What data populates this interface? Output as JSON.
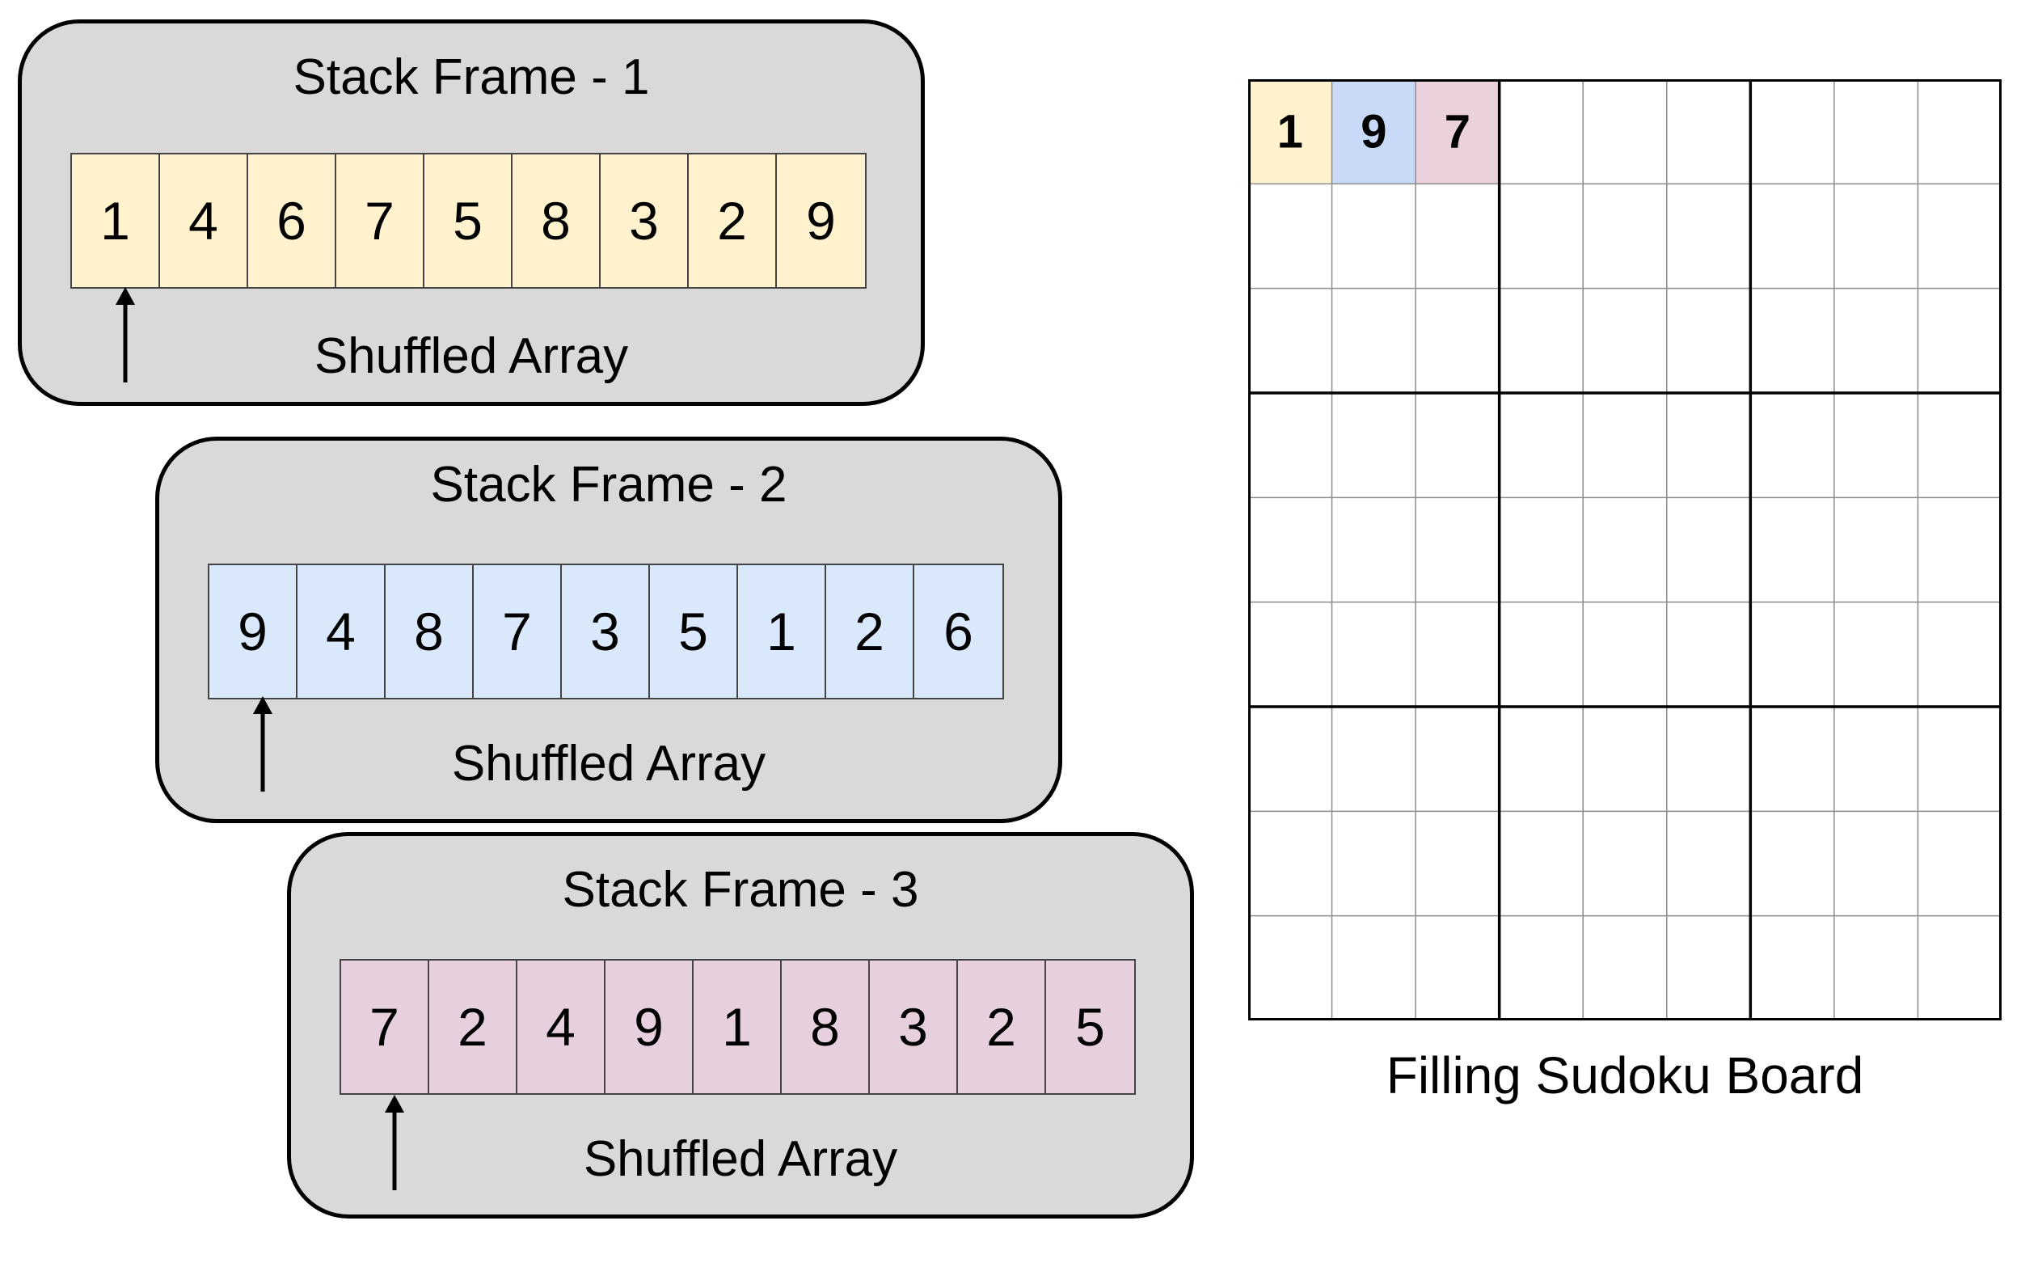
{
  "frames": [
    {
      "title": "Stack Frame - 1",
      "color": "#fff2cc",
      "array": [
        "1",
        "4",
        "6",
        "7",
        "5",
        "8",
        "3",
        "2",
        "9"
      ],
      "label": "Shuffled Array",
      "pointer_index": 0
    },
    {
      "title": "Stack Frame - 2",
      "color": "#dae8fc",
      "array": [
        "9",
        "4",
        "8",
        "7",
        "3",
        "5",
        "1",
        "2",
        "6"
      ],
      "label": "Shuffled Array",
      "pointer_index": 0
    },
    {
      "title": "Stack Frame - 3",
      "color": "#e6d0de",
      "array": [
        "7",
        "2",
        "4",
        "9",
        "1",
        "8",
        "3",
        "2",
        "5"
      ],
      "label": "Shuffled Array",
      "pointer_index": 0
    }
  ],
  "board": {
    "label": "Filling Sudoku Board",
    "rows": 9,
    "cols": 9,
    "filled": [
      {
        "row": 0,
        "col": 0,
        "value": "1",
        "color": "#fff2cc"
      },
      {
        "row": 0,
        "col": 1,
        "value": "9",
        "color": "#c9daf8"
      },
      {
        "row": 0,
        "col": 2,
        "value": "7",
        "color": "#ead1dc"
      }
    ]
  }
}
